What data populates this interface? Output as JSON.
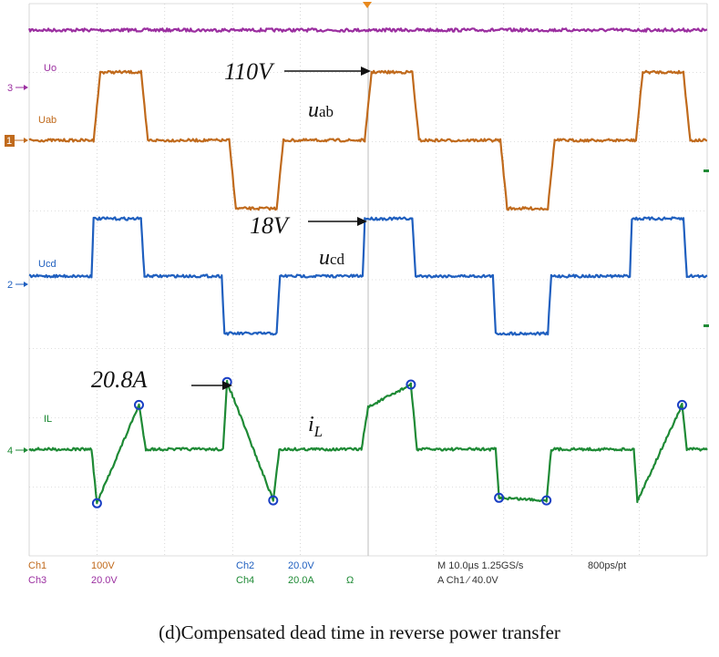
{
  "caption": "(d)Compensated dead time in reverse power transfer",
  "annotations": {
    "v110": "110V",
    "v18": "18V",
    "a208": "20.8A",
    "uab_main": "u",
    "uab_sub": "ab",
    "ucd_main": "u",
    "ucd_sub": "cd",
    "il_main": "i",
    "il_sub": "L"
  },
  "channel_labels": {
    "uo": "Uo",
    "uab": "Uab",
    "ucd": "Ucd",
    "il": "IL"
  },
  "markers": {
    "m3": "3",
    "m1": "1",
    "m2": "2",
    "m4": "4"
  },
  "status": {
    "ch1": "Ch1",
    "ch1_scale": "100V",
    "ch3": "Ch3",
    "ch3_scale": "20.0V",
    "ch2": "Ch2",
    "ch2_scale": "20.0V",
    "ch4": "Ch4",
    "ch4_scale": "20.0A",
    "ch4_unit": "Ω",
    "timebase": "M 10.0µs 1.25GS/s",
    "pts": "800ps/pt",
    "trigger": "A  Ch1  ⁄  40.0V"
  },
  "colors": {
    "uo": "#9b2fa0",
    "uab": "#c06a1c",
    "ucd": "#1f5fbf",
    "il": "#1e8a35",
    "grid": "#bdbdbd",
    "marker_circle": "#1a3fc4"
  },
  "chart_data": {
    "type": "line",
    "x_unit": "µs",
    "x_range": [
      0,
      100
    ],
    "series": [
      {
        "name": "Uo",
        "unit": "V",
        "x": [
          0,
          100
        ],
        "y": [
          110,
          110
        ]
      },
      {
        "name": "Uab",
        "unit": "V",
        "x": [
          0,
          9.5,
          10.5,
          16.5,
          17.5,
          29.5,
          30.5,
          36.5,
          37.5,
          49.5,
          50.5,
          56.5,
          57.5,
          69.5,
          70.5,
          76.5,
          77.5,
          89.5,
          90.5,
          96.5,
          97.5,
          100
        ],
        "y": [
          0,
          0,
          110,
          110,
          0,
          0,
          -110,
          -110,
          0,
          0,
          110,
          110,
          0,
          0,
          -110,
          -110,
          0,
          0,
          110,
          110,
          0,
          0
        ]
      },
      {
        "name": "Ucd",
        "unit": "V",
        "x": [
          0,
          9.2,
          9.5,
          16.5,
          17.0,
          28.4,
          28.8,
          36.5,
          37.0,
          49.2,
          49.5,
          56.5,
          57.0,
          68.4,
          68.8,
          76.5,
          77.0,
          88.6,
          88.9,
          96.5,
          97.0,
          100
        ],
        "y": [
          0,
          0,
          18,
          18,
          0,
          0,
          -18,
          -18,
          0,
          0,
          18,
          18,
          0,
          0,
          -18,
          -18,
          0,
          0,
          18,
          18,
          0,
          0
        ]
      },
      {
        "name": "iL",
        "unit": "A",
        "x": [
          0,
          9.2,
          10.0,
          16.2,
          17.2,
          28.6,
          29.2,
          36.0,
          36.9,
          49.0,
          50.0,
          56.3,
          57.2,
          68.8,
          69.3,
          76.3,
          77.0,
          89.2,
          89.7,
          96.3,
          97.0,
          100
        ],
        "y": [
          0,
          0,
          -16.7,
          13.7,
          0,
          0,
          20.8,
          -15.8,
          0,
          0,
          13.0,
          20.0,
          0,
          0,
          -15.0,
          -15.8,
          0,
          0,
          -16.0,
          13.7,
          0,
          0
        ]
      }
    ],
    "marked_points": [
      {
        "x": 10.0,
        "y": -16.7
      },
      {
        "x": 16.2,
        "y": 13.7
      },
      {
        "x": 29.2,
        "y": 20.8
      },
      {
        "x": 36.0,
        "y": -15.8
      },
      {
        "x": 56.3,
        "y": 20.0
      },
      {
        "x": 69.3,
        "y": -15.0
      },
      {
        "x": 76.3,
        "y": -15.8
      },
      {
        "x": 96.3,
        "y": 13.7
      }
    ]
  }
}
